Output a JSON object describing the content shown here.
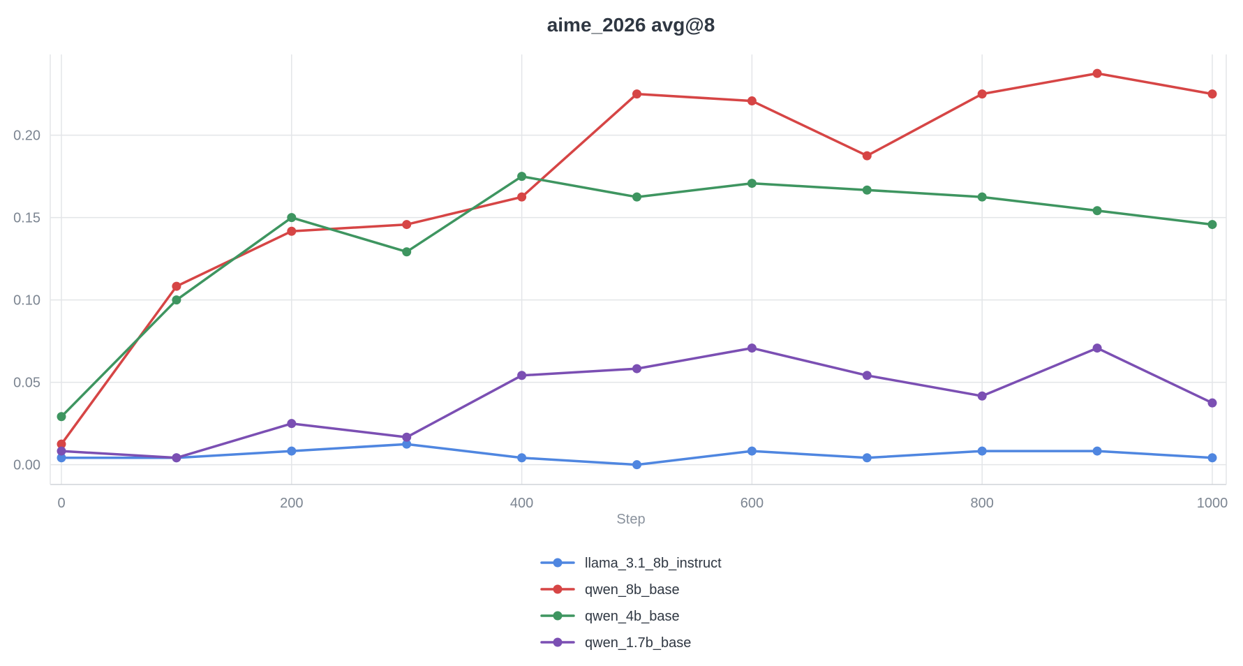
{
  "chart_data": {
    "type": "line",
    "title": "aime_2026 avg@8",
    "xlabel": "Step",
    "ylabel": "",
    "x": [
      0,
      100,
      200,
      300,
      400,
      500,
      600,
      700,
      800,
      900,
      1000
    ],
    "x_ticks": [
      0,
      200,
      400,
      600,
      800,
      1000
    ],
    "x_tick_labels": [
      "0",
      "200",
      "400",
      "600",
      "800",
      "1000"
    ],
    "y_ticks": [
      0,
      0.05,
      0.1,
      0.15,
      0.2
    ],
    "y_tick_labels": [
      "0.00",
      "0.05",
      "0.10",
      "0.15",
      "0.20"
    ],
    "xlim": [
      0,
      1000
    ],
    "ylim": [
      -0.012,
      0.249
    ],
    "grid": true,
    "legend_position": "bottom-center",
    "series": [
      {
        "name": "llama_3.1_8b_instruct",
        "color": "#4f86e0",
        "values": [
          0.0042,
          0.0042,
          0.0083,
          0.0125,
          0.0042,
          0.0,
          0.0083,
          0.0042,
          0.0083,
          0.0083,
          0.0042
        ]
      },
      {
        "name": "qwen_8b_base",
        "color": "#d64545",
        "values": [
          0.0125,
          0.1083,
          0.1417,
          0.1458,
          0.1625,
          0.225,
          0.2208,
          0.1875,
          0.225,
          0.2375,
          0.225
        ]
      },
      {
        "name": "qwen_4b_base",
        "color": "#3e9560",
        "values": [
          0.0292,
          0.1,
          0.15,
          0.1292,
          0.175,
          0.1625,
          0.1708,
          0.1667,
          0.1625,
          0.1542,
          0.1458
        ]
      },
      {
        "name": "qwen_1.7b_base",
        "color": "#7b4fb3",
        "values": [
          0.0083,
          0.0042,
          0.025,
          0.0167,
          0.0542,
          0.0583,
          0.0708,
          0.0542,
          0.0417,
          0.0708,
          0.0375
        ]
      }
    ]
  }
}
